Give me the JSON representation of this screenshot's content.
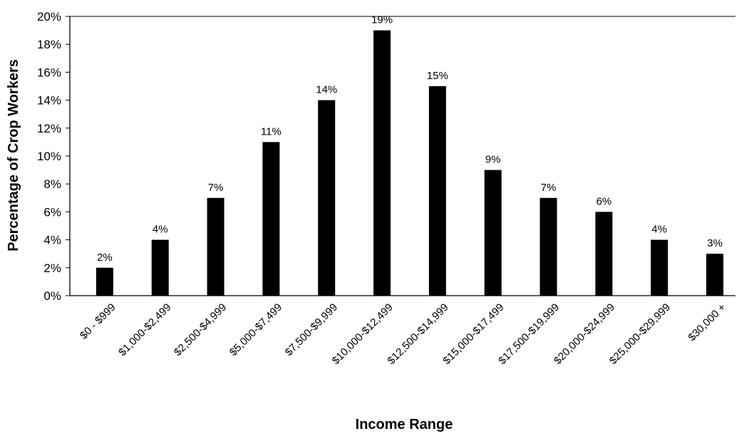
{
  "chart_data": {
    "type": "bar",
    "title": "",
    "xlabel": "Income Range",
    "ylabel": "Percentage of Crop Workers",
    "ylim": [
      0,
      20
    ],
    "y_tick_step": 2,
    "y_tick_suffix": "%",
    "grid": false,
    "legend": "none",
    "bar_color": "#000000",
    "categories": [
      "$0 - $999",
      "$1,000-$2,499",
      "$2,500-$4,999",
      "$5,000-$7,499",
      "$7,500-$9,999",
      "$10,000-$12,499",
      "$12,500-$14,999",
      "$15,000-$17,499",
      "$17,500-$19,999",
      "$20,000-$24,999",
      "$25,000-$29,999",
      "$30,000 +"
    ],
    "values": [
      2,
      4,
      7,
      11,
      14,
      19,
      15,
      9,
      7,
      6,
      4,
      3
    ],
    "data_labels": [
      "2%",
      "4%",
      "7%",
      "11%",
      "14%",
      "19%",
      "15%",
      "9%",
      "7%",
      "6%",
      "4%",
      "3%"
    ]
  }
}
